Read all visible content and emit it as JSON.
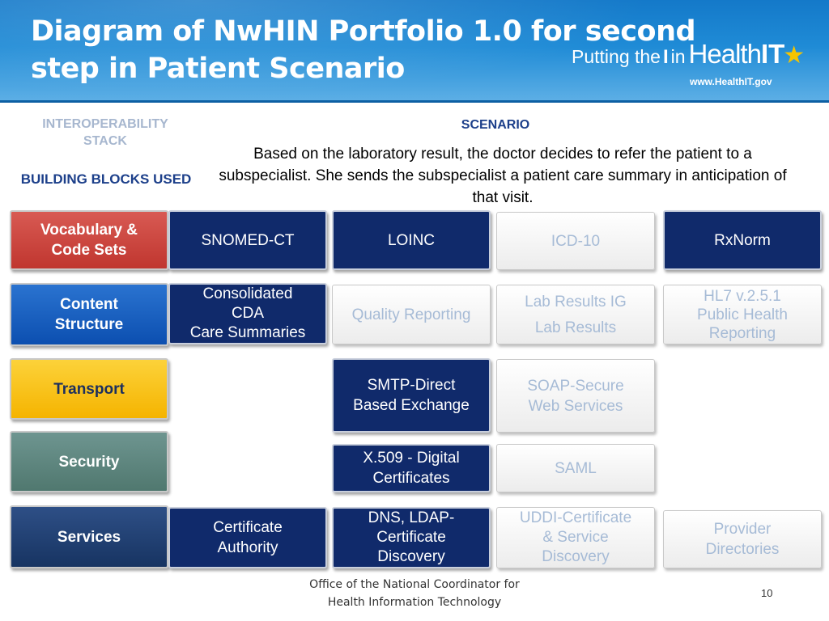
{
  "header": {
    "title_line1": "Diagram of NwHIN Portfolio 1.0 for second",
    "title_line2": "step in Patient Scenario",
    "logo": {
      "part1": "Putting the",
      "part2": "I",
      "part3": "in",
      "part4": "Health",
      "part5": "IT",
      "url": "www.HealthIT.gov"
    }
  },
  "labels": {
    "stack_line1": "INTEROPERABILITY",
    "stack_line2": "STACK",
    "building_blocks": "BUILDING BLOCKS USED",
    "scenario_head": "SCENARIO",
    "scenario_text": "Based on the laboratory result, the doctor decides to refer the patient to a subspecialist. She sends the subspecialist a patient care summary in anticipation of that visit."
  },
  "rows": {
    "vocab": {
      "category": "Vocabulary & Code Sets",
      "c1": "SNOMED-CT",
      "c2": "LOINC",
      "c3": "ICD-10",
      "c4": "RxNorm"
    },
    "content": {
      "category": "Content Structure",
      "c1_l1": "Consolidated",
      "c1_l2": "CDA",
      "c1_l3": "Care Summaries",
      "c2": "Quality Reporting",
      "c3_l1": "Lab Results IG",
      "c3_l2": "Lab Results",
      "c4_l1": "HL7 v.2.5.1",
      "c4_l2": "Public Health",
      "c4_l3": "Reporting"
    },
    "transport": {
      "category": "Transport",
      "c2_l1": "SMTP-Direct",
      "c2_l2": "Based Exchange",
      "c3_l1": "SOAP-Secure",
      "c3_l2": "Web Services"
    },
    "security": {
      "category": "Security",
      "c2_l1": "X.509 - Digital",
      "c2_l2": "Certificates",
      "c3": "SAML"
    },
    "services": {
      "category": "Services",
      "c1_l1": "Certificate",
      "c1_l2": "Authority",
      "c2_l1": "DNS, LDAP-",
      "c2_l2": "Certificate",
      "c2_l3": "Discovery",
      "c3_l1": "UDDI-Certificate",
      "c3_l2": "& Service",
      "c3_l3": "Discovery",
      "c4_l1": "Provider",
      "c4_l2": "Directories"
    }
  },
  "footer": {
    "line1": "Office of the National Coordinator for",
    "line2": "Health Information Technology",
    "page_number": "10"
  },
  "colors": {
    "used_block": "#102a6b",
    "unused_text": "#a6bbd6",
    "vocab": "#c0362f",
    "content": "#0c4fb0",
    "transport": "#f5b400",
    "security": "#50786f",
    "services": "#173462"
  }
}
